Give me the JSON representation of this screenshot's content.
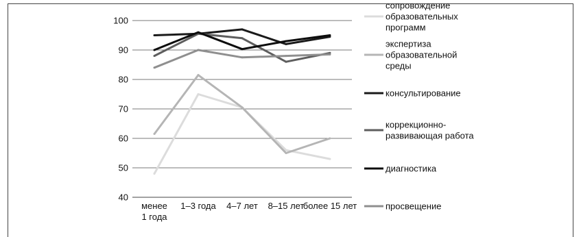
{
  "chart_data": {
    "type": "line",
    "categories": [
      "менее 1 года",
      "1–3 года",
      "4–7 лет",
      "8–15 лет",
      "более 15 лет"
    ],
    "category_lines": [
      [
        "менее",
        "1 года"
      ],
      [
        "1–3 года"
      ],
      [
        "4–7 лет"
      ],
      [
        "8–15 лет"
      ],
      [
        "более 15 лет"
      ]
    ],
    "ylim": [
      40,
      100
    ],
    "yticks": [
      40,
      50,
      60,
      70,
      80,
      90,
      100
    ],
    "grid": true,
    "legend_position": "right",
    "series": [
      {
        "name": "сопровождение образовательных программ",
        "name_lines": [
          "сопровождение",
          "образовательных",
          "программ"
        ],
        "color": "#dcdcdc",
        "values": [
          48,
          75,
          70.5,
          56,
          53
        ]
      },
      {
        "name": "экспертиза образовательной среды",
        "name_lines": [
          "экспертиза",
          "образовательной",
          "среды"
        ],
        "color": "#b5b5b5",
        "values": [
          61.5,
          81.5,
          70.5,
          55,
          60
        ]
      },
      {
        "name": "консультирование",
        "name_lines": [
          "консультирование"
        ],
        "color": "#1a1a1a",
        "values": [
          95,
          95.5,
          97,
          92,
          94.5
        ]
      },
      {
        "name": "коррекционно-развивающая работа",
        "name_lines": [
          "коррекционно-",
          "развивающая работа"
        ],
        "color": "#5e5e5e",
        "values": [
          88,
          95.5,
          94,
          86,
          89
        ]
      },
      {
        "name": "диагностика",
        "name_lines": [
          "диагностика"
        ],
        "color": "#0d0d0d",
        "values": [
          90,
          96,
          90.3,
          93,
          95
        ]
      },
      {
        "name": "просвещение",
        "name_lines": [
          "просвещение"
        ],
        "color": "#8f8f8f",
        "values": [
          84,
          90,
          87.5,
          88,
          88.5
        ]
      }
    ]
  }
}
